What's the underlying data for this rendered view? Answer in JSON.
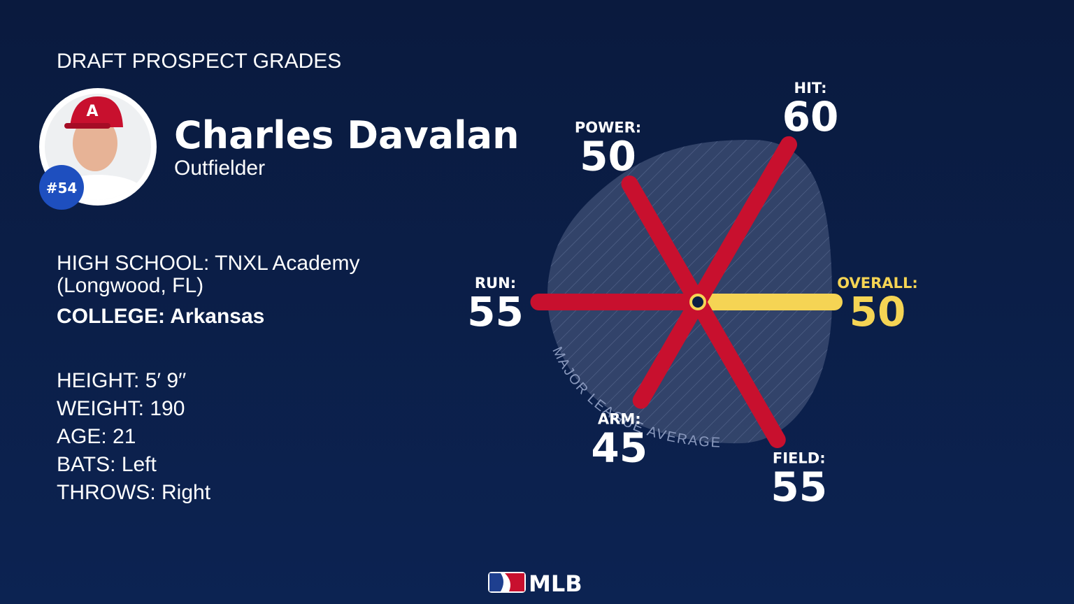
{
  "header": {
    "title": "DRAFT PROSPECT GRADES"
  },
  "player": {
    "name": "Charles Davalan",
    "position": "Outfielder",
    "number": "#54"
  },
  "info": {
    "high_school_label": "HIGH SCHOOL:",
    "high_school_line1": "TNXL Academy",
    "high_school_line2": "(Longwood, FL)",
    "college_label": "COLLEGE:",
    "college": "Arkansas",
    "rows": [
      {
        "label": "HEIGHT:",
        "value": "5′ 9′′"
      },
      {
        "label": "WEIGHT:",
        "value": "190"
      },
      {
        "label": "AGE:",
        "value": "21"
      },
      {
        "label": "BATS:",
        "value": "Left"
      },
      {
        "label": "THROWS:",
        "value": "Right"
      }
    ]
  },
  "chart_data": {
    "type": "radar",
    "categories": [
      "OVERALL:",
      "HIT:",
      "POWER:",
      "RUN:",
      "ARM:",
      "FIELD:"
    ],
    "values": [
      50,
      60,
      50,
      55,
      45,
      55
    ],
    "colors": [
      "#f5d454",
      "#c8102e",
      "#c8102e",
      "#c8102e",
      "#c8102e",
      "#c8102e"
    ],
    "rlim": [
      20,
      80
    ],
    "annotation": "MAJOR LEAGUE AVERAGE"
  },
  "footer": {
    "brand": "MLB"
  }
}
